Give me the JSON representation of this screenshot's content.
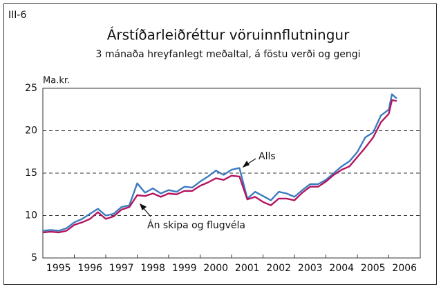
{
  "chart_data": {
    "type": "line",
    "figure_label": "III-6",
    "title": "Árstíðarleiðréttur vöruinnflutningur",
    "subtitle": "3 mánaða hreyfanlegt meðaltal, á föstu verði og gengi",
    "y_unit": "Ma.kr.",
    "x": [
      1995.0,
      1995.25,
      1995.5,
      1995.75,
      1996.0,
      1996.25,
      1996.5,
      1996.75,
      1997.0,
      1997.25,
      1997.5,
      1997.75,
      1998.0,
      1998.25,
      1998.5,
      1998.75,
      1999.0,
      1999.25,
      1999.5,
      1999.75,
      2000.0,
      2000.25,
      2000.5,
      2000.75,
      2001.0,
      2001.25,
      2001.5,
      2001.75,
      2002.0,
      2002.25,
      2002.5,
      2002.75,
      2003.0,
      2003.25,
      2003.5,
      2003.75,
      2004.0,
      2004.25,
      2004.5,
      2004.75,
      2005.0,
      2005.25,
      2005.5,
      2005.75,
      2006.0,
      2006.1,
      2006.25
    ],
    "series": [
      {
        "name": "Alls",
        "color": "#3b7cc0",
        "values": [
          8.2,
          8.3,
          8.2,
          8.5,
          9.2,
          9.6,
          10.2,
          10.8,
          10.0,
          10.2,
          11.0,
          11.2,
          13.8,
          12.7,
          13.2,
          12.6,
          13.0,
          12.8,
          13.4,
          13.3,
          14.0,
          14.6,
          15.3,
          14.8,
          15.4,
          15.6,
          12.0,
          12.8,
          12.3,
          11.8,
          12.8,
          12.6,
          12.2,
          13.0,
          13.7,
          13.7,
          14.2,
          15.0,
          15.8,
          16.4,
          17.5,
          19.2,
          19.8,
          21.8,
          22.5,
          24.3,
          23.8
        ]
      },
      {
        "name": "Án skipa og flugvéla",
        "color": "#b3155f",
        "values": [
          8.0,
          8.1,
          8.0,
          8.2,
          8.9,
          9.2,
          9.6,
          10.4,
          9.6,
          9.9,
          10.7,
          11.0,
          12.4,
          12.3,
          12.6,
          12.2,
          12.6,
          12.5,
          12.9,
          12.9,
          13.5,
          13.9,
          14.4,
          14.2,
          14.7,
          14.6,
          11.9,
          12.2,
          11.6,
          11.2,
          12.0,
          12.0,
          11.8,
          12.7,
          13.4,
          13.4,
          14.0,
          14.8,
          15.4,
          15.8,
          16.9,
          18.0,
          19.2,
          21.0,
          22.0,
          23.6,
          23.5
        ]
      }
    ],
    "annotations": [
      "Alls",
      "Án skipa og flugvéla"
    ],
    "xlim": [
      1995,
      2007
    ],
    "xticks": [
      {
        "value": 1995.5,
        "label": "1995"
      },
      {
        "value": 1996.5,
        "label": "1996"
      },
      {
        "value": 1997.5,
        "label": "1997"
      },
      {
        "value": 1998.5,
        "label": "1998"
      },
      {
        "value": 1999.5,
        "label": "1999"
      },
      {
        "value": 2000.5,
        "label": "2000"
      },
      {
        "value": 2001.5,
        "label": "2001"
      },
      {
        "value": 2002.5,
        "label": "2002"
      },
      {
        "value": 2003.5,
        "label": "2003"
      },
      {
        "value": 2004.5,
        "label": "2004"
      },
      {
        "value": 2005.5,
        "label": "2005"
      },
      {
        "value": 2006.5,
        "label": "2006"
      }
    ],
    "ylim": [
      5,
      25
    ],
    "yticks": [
      5,
      10,
      15,
      20,
      25
    ],
    "grid": true
  }
}
